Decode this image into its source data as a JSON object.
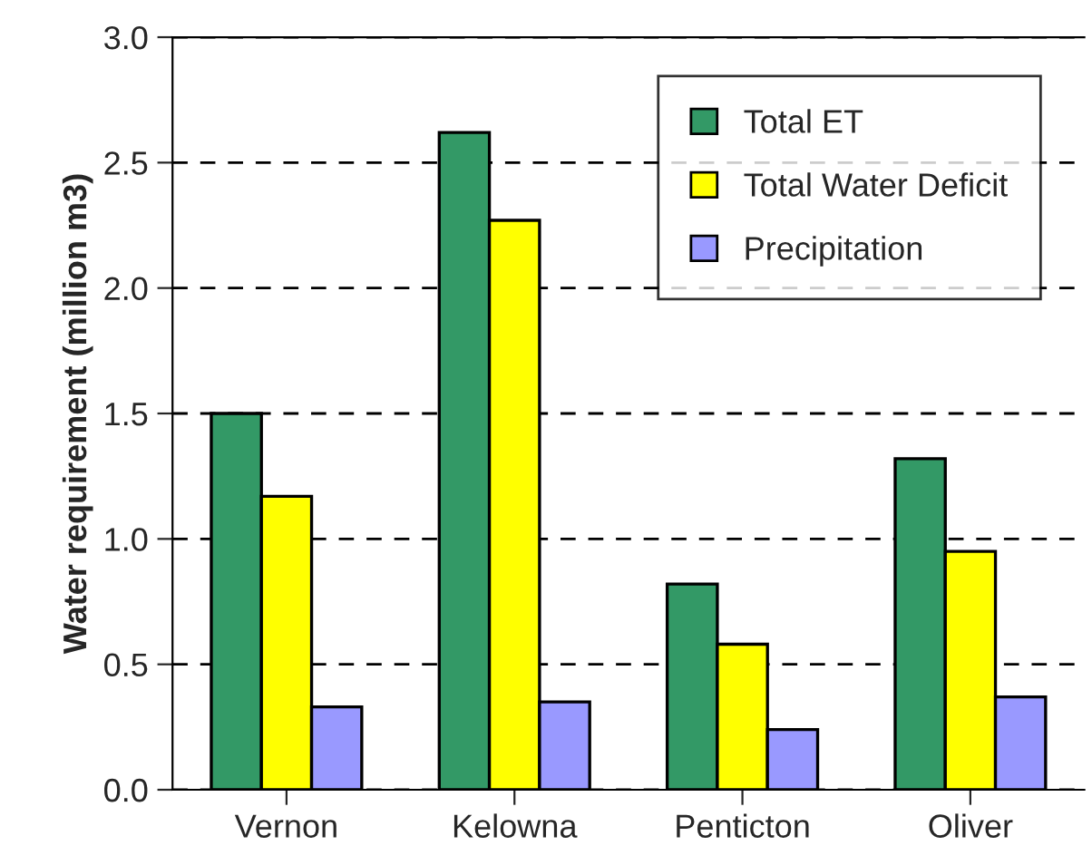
{
  "chart_data": {
    "type": "bar",
    "ylabel": "Water requirement (million m3)",
    "categories": [
      "Vernon",
      "Kelowna",
      "Penticton",
      "Oliver"
    ],
    "series": [
      {
        "name": "Total ET",
        "color": "#339966",
        "values": [
          1.5,
          2.62,
          0.82,
          1.32
        ]
      },
      {
        "name": "Total Water Deficit",
        "color": "#ffff00",
        "values": [
          1.17,
          2.27,
          0.58,
          0.95
        ]
      },
      {
        "name": "Precipitation",
        "color": "#9999ff",
        "values": [
          0.33,
          0.35,
          0.24,
          0.37
        ]
      }
    ],
    "ylim": [
      0,
      3.0
    ],
    "yticks": [
      {
        "value": 0,
        "label": "0.0"
      },
      {
        "value": 0.5,
        "label": "0.5"
      },
      {
        "value": 1.0,
        "label": "1.0"
      },
      {
        "value": 1.5,
        "label": "1.5"
      },
      {
        "value": 2.0,
        "label": "2.0"
      },
      {
        "value": 2.5,
        "label": "2.5"
      },
      {
        "value": 3.0,
        "label": "3.0"
      }
    ],
    "grid": "y",
    "legend": "top right"
  }
}
